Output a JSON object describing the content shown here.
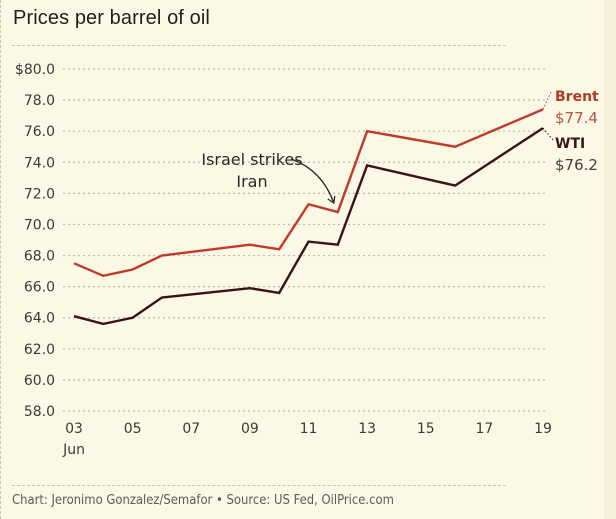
{
  "title": "Prices per barrel of oil",
  "footer": "Chart: Jeronimo Gonzalez/Semafor • Source: US Fed, OilPrice.com",
  "colors": {
    "background": "#fbf9e6",
    "brent": "#c0392b",
    "wti": "#3d1216",
    "grid": "#bdbaa8",
    "annotation": "#2a2a2a"
  },
  "chart_data": {
    "type": "line",
    "title": "Prices per barrel of oil",
    "xlabel": "",
    "ylabel": "",
    "x": [
      3,
      4,
      5,
      6,
      9,
      10,
      11,
      12,
      13,
      16,
      19
    ],
    "x_unit": "day of June",
    "xlim": [
      3,
      19
    ],
    "ylim": [
      58,
      80
    ],
    "x_ticks": [
      3,
      5,
      7,
      9,
      11,
      13,
      15,
      17,
      19
    ],
    "x_tick_labels": [
      "03",
      "05",
      "07",
      "09",
      "11",
      "13",
      "15",
      "17",
      "19"
    ],
    "x_sub_label": "Jun",
    "y_ticks": [
      80,
      78,
      76,
      74,
      72,
      70,
      68,
      66,
      64,
      62,
      60,
      58
    ],
    "y_tick_labels": [
      "$80.0",
      "78.0",
      "76.0",
      "74.0",
      "72.0",
      "70.0",
      "68.0",
      "66.0",
      "64.0",
      "62.0",
      "60.0",
      "58.0"
    ],
    "grid": true,
    "series": [
      {
        "name": "Brent",
        "end_label": "$77.4",
        "values": [
          67.5,
          66.7,
          67.1,
          68.0,
          68.7,
          68.4,
          71.3,
          70.8,
          76.0,
          75.0,
          77.4
        ]
      },
      {
        "name": "WTI",
        "end_label": "$76.2",
        "values": [
          64.1,
          63.6,
          64.0,
          65.3,
          65.9,
          65.6,
          68.9,
          68.7,
          73.8,
          72.5,
          76.2
        ]
      }
    ],
    "annotations": [
      {
        "text_lines": [
          "Israel strikes",
          "Iran"
        ],
        "points_to_x": 12,
        "points_to_series": "Brent"
      }
    ],
    "legend": "direct labels at line ends (right)"
  }
}
